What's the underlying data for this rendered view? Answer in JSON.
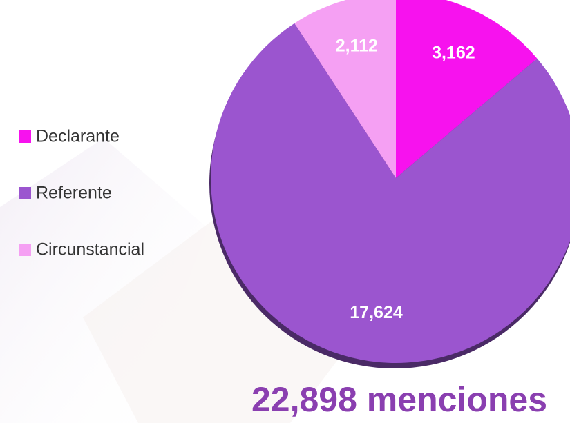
{
  "chart_data": {
    "type": "pie",
    "categories": [
      "Declarante",
      "Referente",
      "Circunstancial"
    ],
    "values": [
      3162,
      17624,
      2112
    ],
    "value_labels": [
      "3,162",
      "17,624",
      "2,112"
    ],
    "colors": [
      "#f712ee",
      "#9b55cf",
      "#f5a0f3"
    ],
    "legend": "left",
    "annotation": "22,898 menciones"
  }
}
